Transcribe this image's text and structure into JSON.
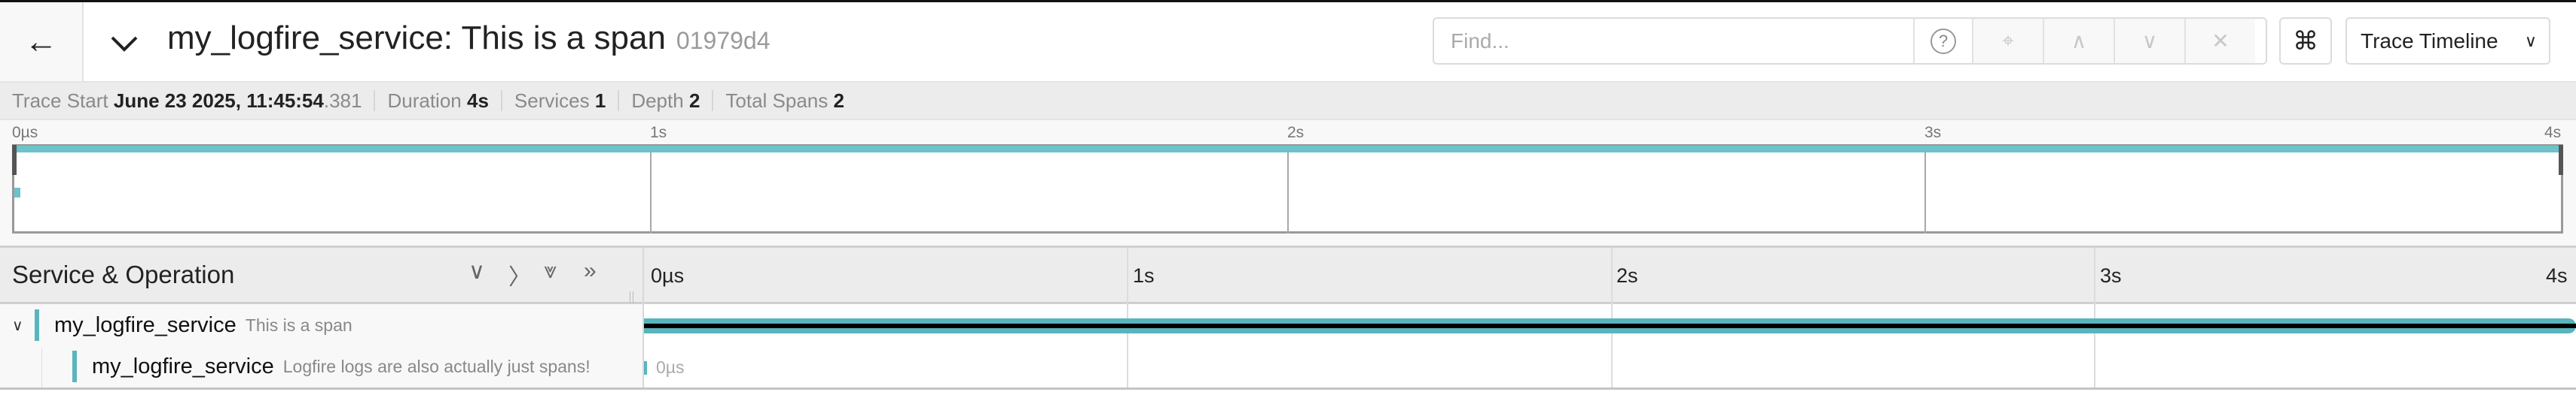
{
  "header": {
    "back_icon": "arrow-left-icon",
    "collapse_icon": "chevron-down-icon",
    "title": "my_logfire_service: This is a span",
    "trace_id": "01979d4",
    "find": {
      "placeholder": "Find...",
      "value": ""
    },
    "find_buttons": {
      "help": "?",
      "locate": "⌖",
      "prev": "∧",
      "next": "∨",
      "clear": "✕"
    },
    "cmd_label": "⌘",
    "view_select": "Trace Timeline"
  },
  "stats": {
    "trace_start_label": "Trace Start",
    "trace_start_value": "June 23 2025, 11:45:54",
    "trace_start_ms": ".381",
    "duration_label": "Duration",
    "duration_value": "4s",
    "services_label": "Services",
    "services_value": "1",
    "depth_label": "Depth",
    "depth_value": "2",
    "total_spans_label": "Total Spans",
    "total_spans_value": "2"
  },
  "ruler": {
    "ticks": [
      "0µs",
      "1s",
      "2s",
      "3s",
      "4s"
    ]
  },
  "table": {
    "header_title": "Service & Operation",
    "header_icons": {
      "collapse_one": "∨",
      "expand_one": "〉",
      "collapse_all": "⩔",
      "expand_all": "»"
    },
    "rows": [
      {
        "service": "my_logfire_service",
        "operation": "This is a span",
        "expanded": true,
        "duration_fraction": 1.0
      },
      {
        "service": "my_logfire_service",
        "operation": "Logfire logs are also actually just spans!",
        "duration_label": "0µs",
        "duration_fraction": 0.0
      }
    ]
  },
  "colors": {
    "span": "#58b5bc",
    "accent": "#6cc3c9"
  }
}
